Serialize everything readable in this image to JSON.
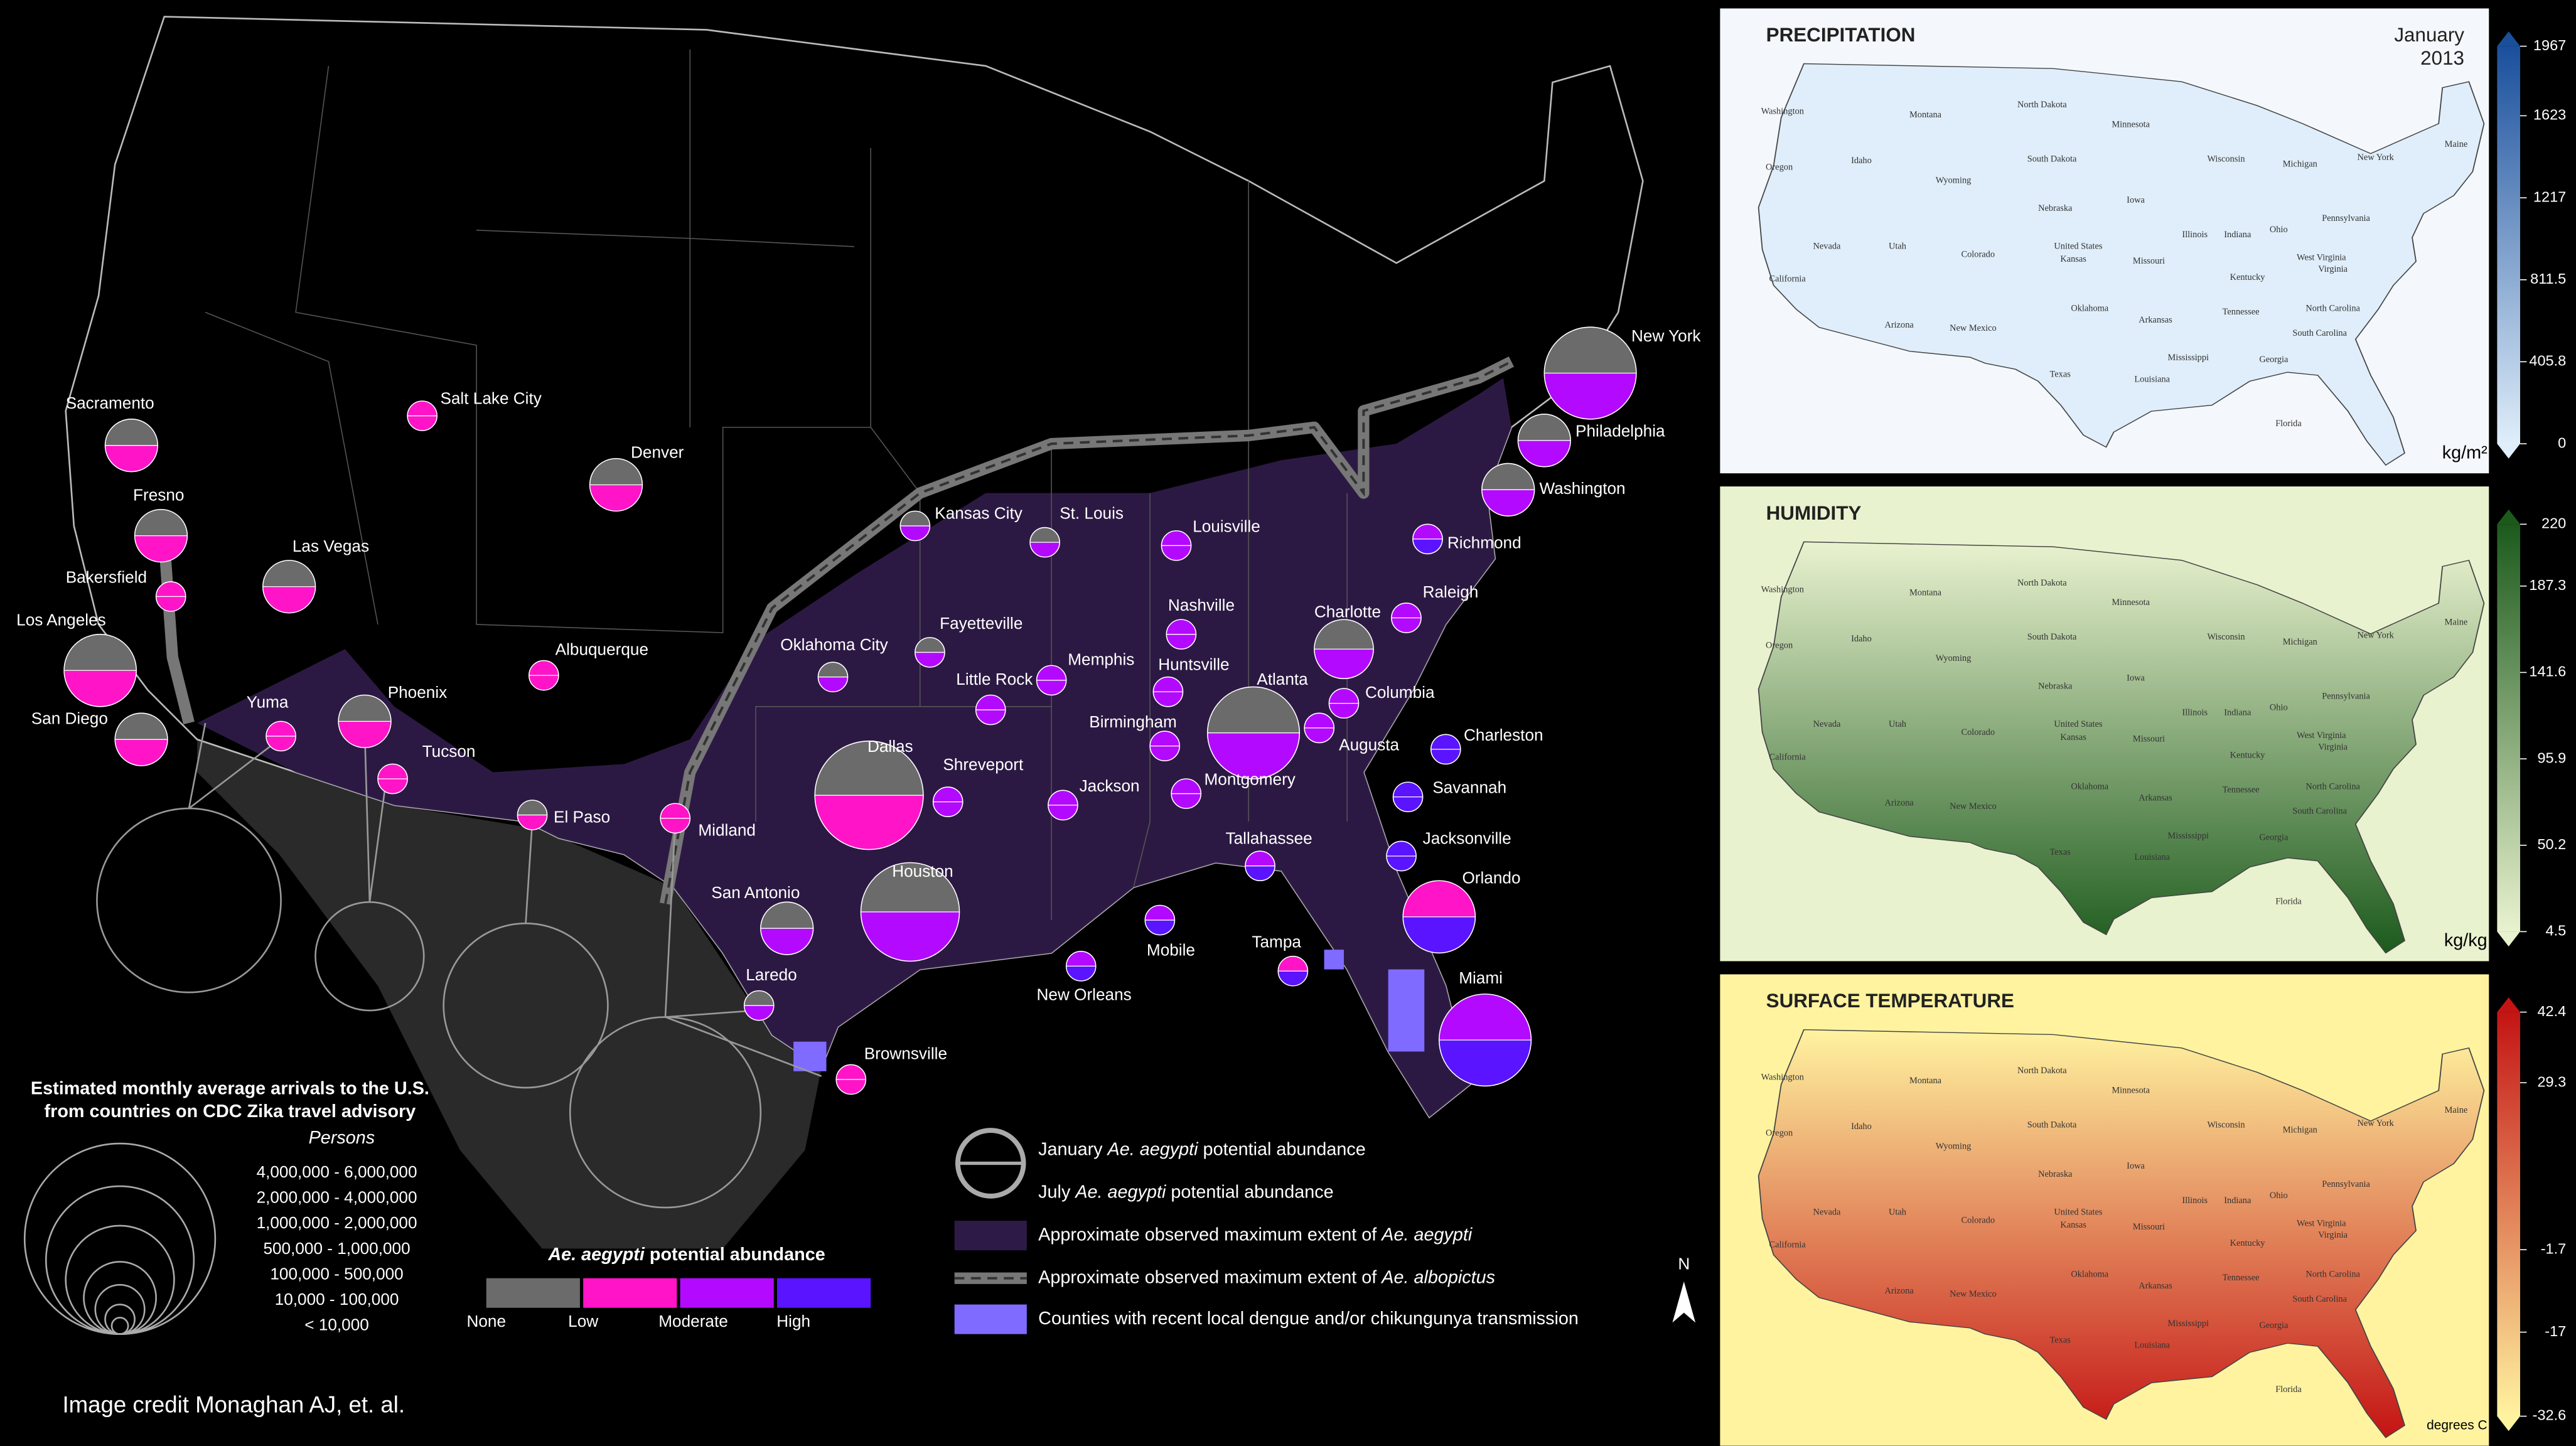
{
  "map": {
    "cities": [
      {
        "name": "New York",
        "january": "None",
        "july": "Moderate"
      },
      {
        "name": "Philadelphia",
        "january": "None",
        "july": "Moderate"
      },
      {
        "name": "Washington",
        "january": "None",
        "july": "Moderate"
      },
      {
        "name": "Richmond",
        "january": "Moderate",
        "july": "High"
      },
      {
        "name": "Raleigh",
        "january": "Moderate",
        "july": "Moderate"
      },
      {
        "name": "Charlotte",
        "january": "None",
        "july": "Moderate"
      },
      {
        "name": "Columbia",
        "january": "Moderate",
        "july": "Moderate"
      },
      {
        "name": "Atlanta",
        "january": "None",
        "july": "Moderate"
      },
      {
        "name": "Charleston",
        "january": "High",
        "july": "High"
      },
      {
        "name": "Augusta",
        "january": "Moderate",
        "july": "Moderate"
      },
      {
        "name": "Savannah",
        "january": "High",
        "july": "High"
      },
      {
        "name": "Jacksonville",
        "january": "High",
        "july": "High"
      },
      {
        "name": "Orlando",
        "january": "Low",
        "july": "High"
      },
      {
        "name": "Miami",
        "january": "Moderate",
        "july": "High"
      },
      {
        "name": "Tampa",
        "january": "Low",
        "july": "High"
      },
      {
        "name": "Tallahassee",
        "january": "Moderate",
        "july": "High"
      },
      {
        "name": "Mobile",
        "january": "Moderate",
        "july": "High"
      },
      {
        "name": "New Orleans",
        "january": "Moderate",
        "july": "High"
      },
      {
        "name": "Montgomery",
        "january": "Moderate",
        "july": "Moderate"
      },
      {
        "name": "Birmingham",
        "january": "Moderate",
        "july": "Moderate"
      },
      {
        "name": "Huntsville",
        "january": "Moderate",
        "july": "Moderate"
      },
      {
        "name": "Nashville",
        "january": "Moderate",
        "july": "Moderate"
      },
      {
        "name": "Memphis",
        "january": "Moderate",
        "july": "Moderate"
      },
      {
        "name": "Louisville",
        "january": "Moderate",
        "july": "Moderate"
      },
      {
        "name": "St. Louis",
        "january": "None",
        "july": "Moderate"
      },
      {
        "name": "Kansas City",
        "january": "None",
        "july": "Moderate"
      },
      {
        "name": "Little Rock",
        "january": "Moderate",
        "july": "Moderate"
      },
      {
        "name": "Fayetteville",
        "january": "None",
        "july": "Moderate"
      },
      {
        "name": "Jackson",
        "january": "Moderate",
        "july": "Moderate"
      },
      {
        "name": "Shreveport",
        "january": "Moderate",
        "july": "Moderate"
      },
      {
        "name": "Oklahoma City",
        "january": "None",
        "july": "Moderate"
      },
      {
        "name": "Dallas",
        "january": "None",
        "july": "Low"
      },
      {
        "name": "Houston",
        "january": "None",
        "july": "Moderate"
      },
      {
        "name": "San Antonio",
        "january": "None",
        "july": "Moderate"
      },
      {
        "name": "Laredo",
        "january": "None",
        "july": "Moderate"
      },
      {
        "name": "Brownsville",
        "january": "Low",
        "july": "Low"
      },
      {
        "name": "Midland",
        "january": "Low",
        "july": "Low"
      },
      {
        "name": "El Paso",
        "january": "None",
        "july": "Low"
      },
      {
        "name": "Albuquerque",
        "january": "Low",
        "july": "Low"
      },
      {
        "name": "Tucson",
        "january": "Low",
        "july": "Low"
      },
      {
        "name": "Phoenix",
        "january": "None",
        "july": "Low"
      },
      {
        "name": "Yuma",
        "january": "Low",
        "july": "Low"
      },
      {
        "name": "San Diego",
        "january": "None",
        "july": "Low"
      },
      {
        "name": "Los Angeles",
        "january": "None",
        "july": "Low"
      },
      {
        "name": "Bakersfield",
        "january": "Low",
        "july": "Low"
      },
      {
        "name": "Fresno",
        "january": "None",
        "july": "Low"
      },
      {
        "name": "Sacramento",
        "january": "None",
        "july": "Low"
      },
      {
        "name": "Las Vegas",
        "january": "None",
        "july": "Low"
      },
      {
        "name": "Salt Lake City",
        "january": "Low",
        "july": "Low"
      },
      {
        "name": "Denver",
        "january": "None",
        "july": "Low"
      }
    ],
    "arrivals_legend": {
      "title": [
        "Estimated monthly average arrivals to the U.S.",
        "from countries on CDC Zika travel advisory"
      ],
      "unit": "Persons",
      "ranges": [
        "4,000,000  -  6,000,000",
        "2,000,000  -  4,000,000",
        "1,000,000  -  2,000,000",
        "500,000  -  1,000,000",
        "100,000  -  500,000",
        "10,000  -  100,000",
        "< 10,000"
      ]
    },
    "abundance_legend": {
      "title": {
        "species": "Ae. aegypti",
        "after": " potential abundance"
      },
      "levels": [
        {
          "name": "None",
          "color": "#6b6b6b"
        },
        {
          "name": "Low",
          "color": "#ff14c8"
        },
        {
          "name": "Moderate",
          "color": "#b30aff"
        },
        {
          "name": "High",
          "color": "#5a14ff"
        }
      ]
    },
    "key": [
      {
        "before": "January ",
        "species": "Ae. aegypti",
        "after": " potential abundance"
      },
      {
        "before": "July ",
        "species": "Ae. aegypti",
        "after": " potential abundance"
      },
      {
        "before": "Approximate observed maximum extent of ",
        "species": "Ae. aegypti"
      },
      {
        "before": "Approximate observed maximum extent of ",
        "species": "Ae. albopictus"
      },
      {
        "before": "Counties with recent local dengue and/or chikungunya transmission"
      }
    ],
    "north": "N",
    "credit": "Image credit Monaghan AJ, et. al."
  },
  "panels": [
    {
      "title": "PRECIPITATION",
      "date": [
        "January",
        "2013"
      ],
      "unit": "kg/m²",
      "ticks": [
        1967,
        1623,
        1217,
        811.5,
        405.8,
        0
      ],
      "colors": [
        "#1a4f9c",
        "#dfeefa"
      ]
    },
    {
      "title": "HUMIDITY",
      "unit": "kg/kg",
      "ticks": [
        220,
        187.3,
        141.6,
        95.9,
        50.2,
        4.5
      ],
      "colors": [
        "#1c5a1c",
        "#e9f2cf"
      ]
    },
    {
      "title": "SURFACE TEMPERATURE",
      "unit": "degrees C",
      "ticks": [
        42.4,
        29.3,
        -1.7,
        -17,
        -32.6
      ],
      "colors": [
        "#c41414",
        "#fff3a0"
      ]
    }
  ],
  "state_labels": [
    "Washington",
    "Montana",
    "North Dakota",
    "Minnesota",
    "Oregon",
    "Idaho",
    "Wyoming",
    "South Dakota",
    "Wisconsin",
    "Michigan",
    "Maine",
    "Nebraska",
    "Iowa",
    "Nevada",
    "Utah",
    "Colorado",
    "Kansas",
    "Illinois",
    "Indiana",
    "Ohio",
    "Pennsylvania",
    "New York",
    "Missouri",
    "Kentucky",
    "West Virginia",
    "Virginia",
    "California",
    "Arizona",
    "New Mexico",
    "Oklahoma",
    "Arkansas",
    "Tennessee",
    "North Carolina",
    "South Carolina",
    "Texas",
    "Mississippi",
    "Georgia",
    "Louisiana",
    "Florida",
    "United States"
  ]
}
